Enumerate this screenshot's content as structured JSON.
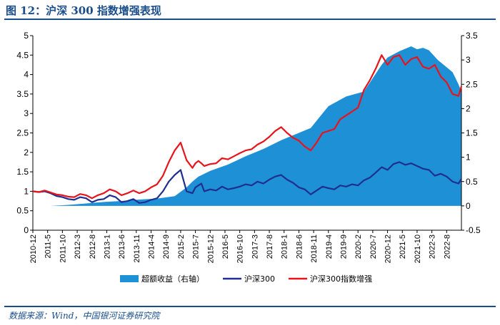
{
  "header": {
    "title": "图 12：沪深 300 指数增强表现"
  },
  "footer": {
    "source": "数据来源：Wind，中国银河证券研究院"
  },
  "chart_data": {
    "type": "line",
    "title": "沪深 300 指数增强表现",
    "left_axis": {
      "ylim": [
        0,
        5
      ],
      "ticks": [
        "0",
        "0.5",
        "1",
        "1.5",
        "2",
        "2.5",
        "3",
        "3.5",
        "4",
        "4.5",
        "5"
      ]
    },
    "right_axis": {
      "ylim": [
        -0.5,
        3.5
      ],
      "ticks": [
        "-0.5",
        "0",
        "0.5",
        "1",
        "1.5",
        "2",
        "2.5",
        "3",
        "3.5"
      ]
    },
    "x_tick_labels": [
      "2010-12",
      "2011-5",
      "2011-10",
      "2012-3",
      "2012-8",
      "2013-1",
      "2013-6",
      "2013-11",
      "2014-4",
      "2014-9",
      "2015-2",
      "2015-7",
      "2015-12",
      "2016-5",
      "2016-10",
      "2017-3",
      "2017-8",
      "2018-1",
      "2018-6",
      "2018-11",
      "2019-4",
      "2019-9",
      "2020-2",
      "2020-7",
      "2020-12",
      "2021-5",
      "2021-10",
      "2022-3",
      "2022-8"
    ],
    "x_range_months": [
      0,
      145
    ],
    "legend": [
      "超额收益（右轴）",
      "沪深300",
      "沪深300指数增强"
    ],
    "colors": {
      "excess": "#1e90d6",
      "hs300": "#1f2f8f",
      "enhanced": "#e8141c",
      "axis": "#000000"
    },
    "series": [
      {
        "name": "超额收益（右轴）",
        "axis": "right",
        "type": "area",
        "x": [
          0,
          6,
          12,
          18,
          24,
          30,
          36,
          42,
          48,
          52,
          54,
          56,
          60,
          66,
          72,
          78,
          84,
          88,
          90,
          94,
          100,
          106,
          112,
          118,
          120,
          124,
          128,
          130,
          132,
          134,
          137,
          140,
          142,
          144,
          145
        ],
        "values": [
          0,
          0,
          0.02,
          0.05,
          0.08,
          0.1,
          0.13,
          0.15,
          0.2,
          0.38,
          0.5,
          0.6,
          0.72,
          0.85,
          1.02,
          1.17,
          1.35,
          1.45,
          1.5,
          1.6,
          2.05,
          2.25,
          2.35,
          2.9,
          3.05,
          3.18,
          3.28,
          3.22,
          3.25,
          3.2,
          3.0,
          2.85,
          2.75,
          2.5,
          2.35
        ]
      },
      {
        "name": "沪深300",
        "axis": "left",
        "x": [
          0,
          2,
          4,
          6,
          8,
          10,
          12,
          14,
          16,
          18,
          20,
          22,
          24,
          26,
          28,
          30,
          32,
          34,
          36,
          38,
          40,
          42,
          44,
          46,
          48,
          50,
          52,
          54,
          55,
          56,
          57,
          58,
          60,
          62,
          64,
          66,
          68,
          70,
          72,
          74,
          76,
          78,
          80,
          82,
          84,
          86,
          88,
          90,
          92,
          94,
          96,
          98,
          100,
          102,
          104,
          106,
          108,
          110,
          112,
          114,
          116,
          118,
          120,
          122,
          124,
          126,
          128,
          130,
          132,
          134,
          136,
          138,
          140,
          142,
          144,
          145
        ],
        "values": [
          1.0,
          0.98,
          1.0,
          0.95,
          0.88,
          0.85,
          0.8,
          0.78,
          0.85,
          0.82,
          0.72,
          0.78,
          0.8,
          0.9,
          0.85,
          0.72,
          0.75,
          0.8,
          0.7,
          0.72,
          0.78,
          0.82,
          1.0,
          1.25,
          1.42,
          1.55,
          1.0,
          0.95,
          1.1,
          1.15,
          1.2,
          1.0,
          1.05,
          1.02,
          1.12,
          1.05,
          1.08,
          1.12,
          1.18,
          1.15,
          1.25,
          1.2,
          1.3,
          1.38,
          1.42,
          1.3,
          1.22,
          1.1,
          1.05,
          0.92,
          1.02,
          1.12,
          1.08,
          1.05,
          1.15,
          1.12,
          1.18,
          1.15,
          1.28,
          1.35,
          1.48,
          1.62,
          1.55,
          1.7,
          1.75,
          1.68,
          1.72,
          1.65,
          1.58,
          1.55,
          1.4,
          1.45,
          1.38,
          1.25,
          1.2,
          1.32
        ]
      },
      {
        "name": "沪深300指数增强",
        "axis": "left",
        "x": [
          0,
          2,
          4,
          6,
          8,
          10,
          12,
          14,
          16,
          18,
          20,
          22,
          24,
          26,
          28,
          30,
          32,
          34,
          36,
          38,
          40,
          42,
          44,
          46,
          48,
          50,
          52,
          54,
          55,
          56,
          57,
          58,
          60,
          62,
          64,
          66,
          68,
          70,
          72,
          74,
          76,
          78,
          80,
          82,
          84,
          86,
          88,
          90,
          92,
          94,
          96,
          98,
          100,
          102,
          104,
          106,
          108,
          110,
          112,
          114,
          116,
          118,
          120,
          122,
          124,
          126,
          128,
          130,
          132,
          134,
          136,
          138,
          140,
          142,
          144,
          145
        ],
        "values": [
          1.0,
          0.98,
          1.02,
          0.97,
          0.92,
          0.9,
          0.86,
          0.85,
          0.93,
          0.9,
          0.82,
          0.9,
          0.95,
          1.05,
          1.0,
          0.9,
          0.95,
          1.02,
          0.95,
          1.0,
          1.1,
          1.18,
          1.4,
          1.75,
          2.05,
          2.25,
          1.8,
          1.6,
          1.72,
          1.78,
          1.72,
          1.65,
          1.7,
          1.72,
          1.85,
          1.82,
          1.9,
          1.98,
          2.05,
          2.08,
          2.2,
          2.28,
          2.4,
          2.55,
          2.65,
          2.5,
          2.38,
          2.3,
          2.15,
          2.05,
          2.25,
          2.5,
          2.55,
          2.6,
          2.85,
          2.95,
          3.05,
          3.15,
          3.6,
          3.85,
          4.15,
          4.5,
          4.25,
          4.45,
          4.5,
          4.25,
          4.4,
          4.45,
          4.2,
          4.15,
          4.25,
          3.95,
          3.8,
          3.5,
          3.45,
          3.7
        ]
      }
    ]
  }
}
